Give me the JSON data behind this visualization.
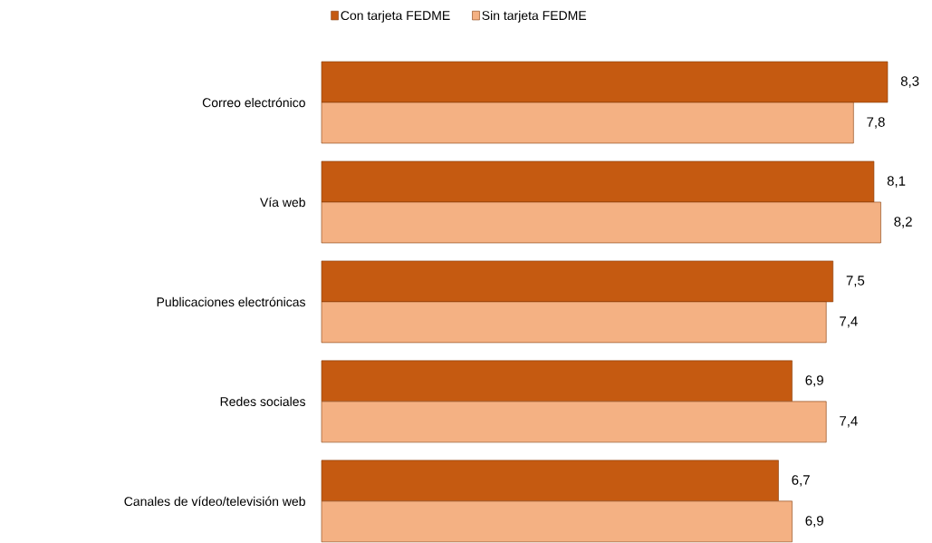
{
  "chart_data": {
    "type": "bar",
    "orientation": "horizontal",
    "categories": [
      "Correo electrónico",
      "Vía web",
      "Publicaciones electrónicas",
      "Redes sociales",
      "Canales de vídeo/televisión web"
    ],
    "series": [
      {
        "name": "Con tarjeta FEDME",
        "color": "#c55a11",
        "values": [
          8.3,
          8.1,
          7.5,
          6.9,
          6.7
        ],
        "value_labels": [
          "8,3",
          "8,1",
          "7,5",
          "6,9",
          "6,7"
        ]
      },
      {
        "name": "Sin tarjeta FEDME",
        "color": "#f4b183",
        "values": [
          7.8,
          8.2,
          7.4,
          7.4,
          6.9
        ],
        "value_labels": [
          "7,8",
          "8,2",
          "7,4",
          "7,4",
          "6,9"
        ]
      }
    ],
    "xlim": [
      0,
      8.3
    ],
    "tick_labels": "y",
    "legend": "top",
    "grid": false
  }
}
